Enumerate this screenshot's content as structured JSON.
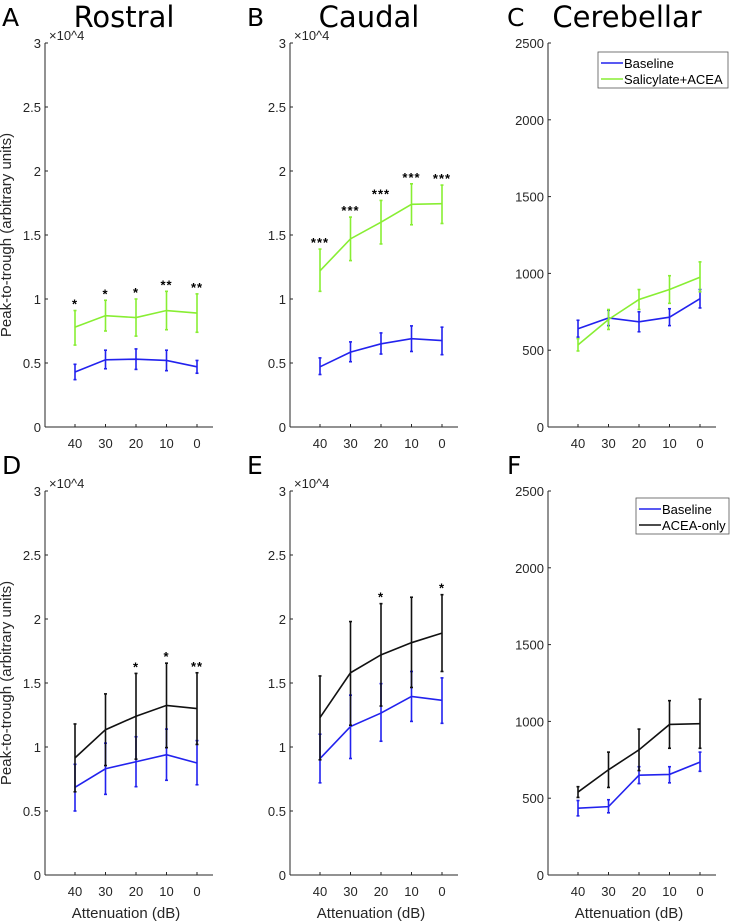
{
  "chart_data": [
    {
      "panel": "A",
      "title": "Rostral",
      "type": "line",
      "multiplier": "×10^4",
      "ylabel": "Peak-to-trough (arbitrary units)",
      "xlabel": "",
      "categories": [
        "40",
        "30",
        "20",
        "10",
        "0"
      ],
      "ylim": [
        0,
        3
      ],
      "yticks": [
        "0",
        "0.5",
        "1",
        "1.5",
        "2",
        "2.5",
        "3"
      ],
      "series": [
        {
          "color": "#2222ee",
          "values": [
            0.43,
            0.525,
            0.53,
            0.52,
            0.47
          ],
          "err_low": [
            0.37,
            0.455,
            0.45,
            0.44,
            0.42
          ],
          "err_high": [
            0.49,
            0.6,
            0.61,
            0.6,
            0.52
          ]
        },
        {
          "color": "#88ee33",
          "values": [
            0.78,
            0.87,
            0.855,
            0.91,
            0.89
          ],
          "err_low": [
            0.64,
            0.75,
            0.71,
            0.76,
            0.74
          ],
          "err_high": [
            0.91,
            0.99,
            1.0,
            1.06,
            1.04
          ]
        }
      ],
      "significance": [
        "*",
        "*",
        "*",
        "**",
        "**"
      ]
    },
    {
      "panel": "B",
      "title": "Caudal",
      "type": "line",
      "multiplier": "×10^4",
      "ylabel": "",
      "xlabel": "",
      "categories": [
        "40",
        "30",
        "20",
        "10",
        "0"
      ],
      "ylim": [
        0,
        3
      ],
      "yticks": [
        "0",
        "0.5",
        "1",
        "1.5",
        "2",
        "2.5",
        "3"
      ],
      "series": [
        {
          "color": "#2222ee",
          "values": [
            0.47,
            0.585,
            0.65,
            0.69,
            0.675
          ],
          "err_low": [
            0.41,
            0.51,
            0.57,
            0.59,
            0.565
          ],
          "err_high": [
            0.54,
            0.665,
            0.735,
            0.79,
            0.78
          ]
        },
        {
          "color": "#88ee33",
          "values": [
            1.22,
            1.47,
            1.6,
            1.74,
            1.745
          ],
          "err_low": [
            1.06,
            1.3,
            1.43,
            1.58,
            1.59
          ],
          "err_high": [
            1.39,
            1.64,
            1.77,
            1.9,
            1.89
          ]
        }
      ],
      "significance": [
        "***",
        "***",
        "***",
        "***",
        "***"
      ]
    },
    {
      "panel": "C",
      "title": "Cerebellar",
      "type": "line",
      "multiplier": "",
      "ylabel": "",
      "xlabel": "",
      "categories": [
        "40",
        "30",
        "20",
        "10",
        "0"
      ],
      "ylim": [
        0,
        2500
      ],
      "yticks": [
        "0",
        "500",
        "1000",
        "1500",
        "2000",
        "2500"
      ],
      "legend": {
        "placement": "top-right",
        "entries": [
          "Baseline",
          "Salicylate+ACEA"
        ]
      },
      "series": [
        {
          "name": "Baseline",
          "color": "#2222ee",
          "values": [
            640,
            710,
            685,
            715,
            835
          ],
          "err_low": [
            585,
            660,
            620,
            660,
            775
          ],
          "err_high": [
            695,
            760,
            750,
            770,
            895
          ]
        },
        {
          "name": "Salicylate+ACEA",
          "color": "#88ee33",
          "values": [
            535,
            700,
            830,
            895,
            975
          ],
          "err_low": [
            495,
            635,
            765,
            805,
            880
          ],
          "err_high": [
            575,
            765,
            895,
            985,
            1075
          ]
        }
      ],
      "significance": [
        "",
        "",
        "",
        "",
        ""
      ]
    },
    {
      "panel": "D",
      "title": "",
      "type": "line",
      "multiplier": "×10^4",
      "ylabel": "Peak-to-trough (arbitrary units)",
      "xlabel": "Attenuation (dB)",
      "categories": [
        "40",
        "30",
        "20",
        "10",
        "0"
      ],
      "ylim": [
        0,
        3
      ],
      "yticks": [
        "0",
        "0.5",
        "1",
        "1.5",
        "2",
        "2.5",
        "3"
      ],
      "series": [
        {
          "color": "#2222ee",
          "values": [
            0.685,
            0.83,
            0.885,
            0.94,
            0.875
          ],
          "err_low": [
            0.5,
            0.63,
            0.69,
            0.74,
            0.705
          ],
          "err_high": [
            0.865,
            1.03,
            1.08,
            1.14,
            1.05
          ]
        },
        {
          "color": "#111111",
          "values": [
            0.915,
            1.135,
            1.24,
            1.325,
            1.3
          ],
          "err_low": [
            0.65,
            0.855,
            0.905,
            0.995,
            1.02
          ],
          "err_high": [
            1.18,
            1.415,
            1.575,
            1.655,
            1.58
          ]
        }
      ],
      "significance": [
        "",
        "",
        "*",
        "*",
        "**"
      ]
    },
    {
      "panel": "E",
      "title": "",
      "type": "line",
      "multiplier": "×10^4",
      "ylabel": "",
      "xlabel": "Attenuation (dB)",
      "categories": [
        "40",
        "30",
        "20",
        "10",
        "0"
      ],
      "ylim": [
        0,
        3
      ],
      "yticks": [
        "0",
        "0.5",
        "1",
        "1.5",
        "2",
        "2.5",
        "3"
      ],
      "series": [
        {
          "color": "#2222ee",
          "values": [
            0.91,
            1.16,
            1.265,
            1.395,
            1.365
          ],
          "err_low": [
            0.72,
            0.91,
            1.045,
            1.2,
            1.185
          ],
          "err_high": [
            1.1,
            1.405,
            1.495,
            1.59,
            1.54
          ]
        },
        {
          "color": "#111111",
          "values": [
            1.23,
            1.58,
            1.72,
            1.815,
            1.89
          ],
          "err_low": [
            0.9,
            1.17,
            1.32,
            1.465,
            1.59
          ],
          "err_high": [
            1.555,
            1.98,
            2.12,
            2.17,
            2.19
          ]
        }
      ],
      "significance": [
        "",
        "",
        "*",
        "",
        "*"
      ]
    },
    {
      "panel": "F",
      "title": "",
      "type": "line",
      "multiplier": "",
      "ylabel": "",
      "xlabel": "Attenuation (dB)",
      "categories": [
        "40",
        "30",
        "20",
        "10",
        "0"
      ],
      "ylim": [
        0,
        2500
      ],
      "yticks": [
        "0",
        "500",
        "1000",
        "1500",
        "2000",
        "2500"
      ],
      "legend": {
        "placement": "top-right",
        "entries": [
          "Baseline",
          "ACEA-only"
        ]
      },
      "series": [
        {
          "name": "Baseline",
          "color": "#2222ee",
          "values": [
            435,
            445,
            650,
            655,
            735
          ],
          "err_low": [
            385,
            405,
            595,
            600,
            675
          ],
          "err_high": [
            485,
            490,
            705,
            705,
            800
          ]
        },
        {
          "name": "ACEA-only",
          "color": "#111111",
          "values": [
            540,
            685,
            815,
            980,
            985
          ],
          "err_low": [
            505,
            570,
            680,
            825,
            825
          ],
          "err_high": [
            575,
            800,
            950,
            1135,
            1145
          ]
        }
      ],
      "significance": [
        "",
        "",
        "",
        "",
        ""
      ]
    }
  ]
}
